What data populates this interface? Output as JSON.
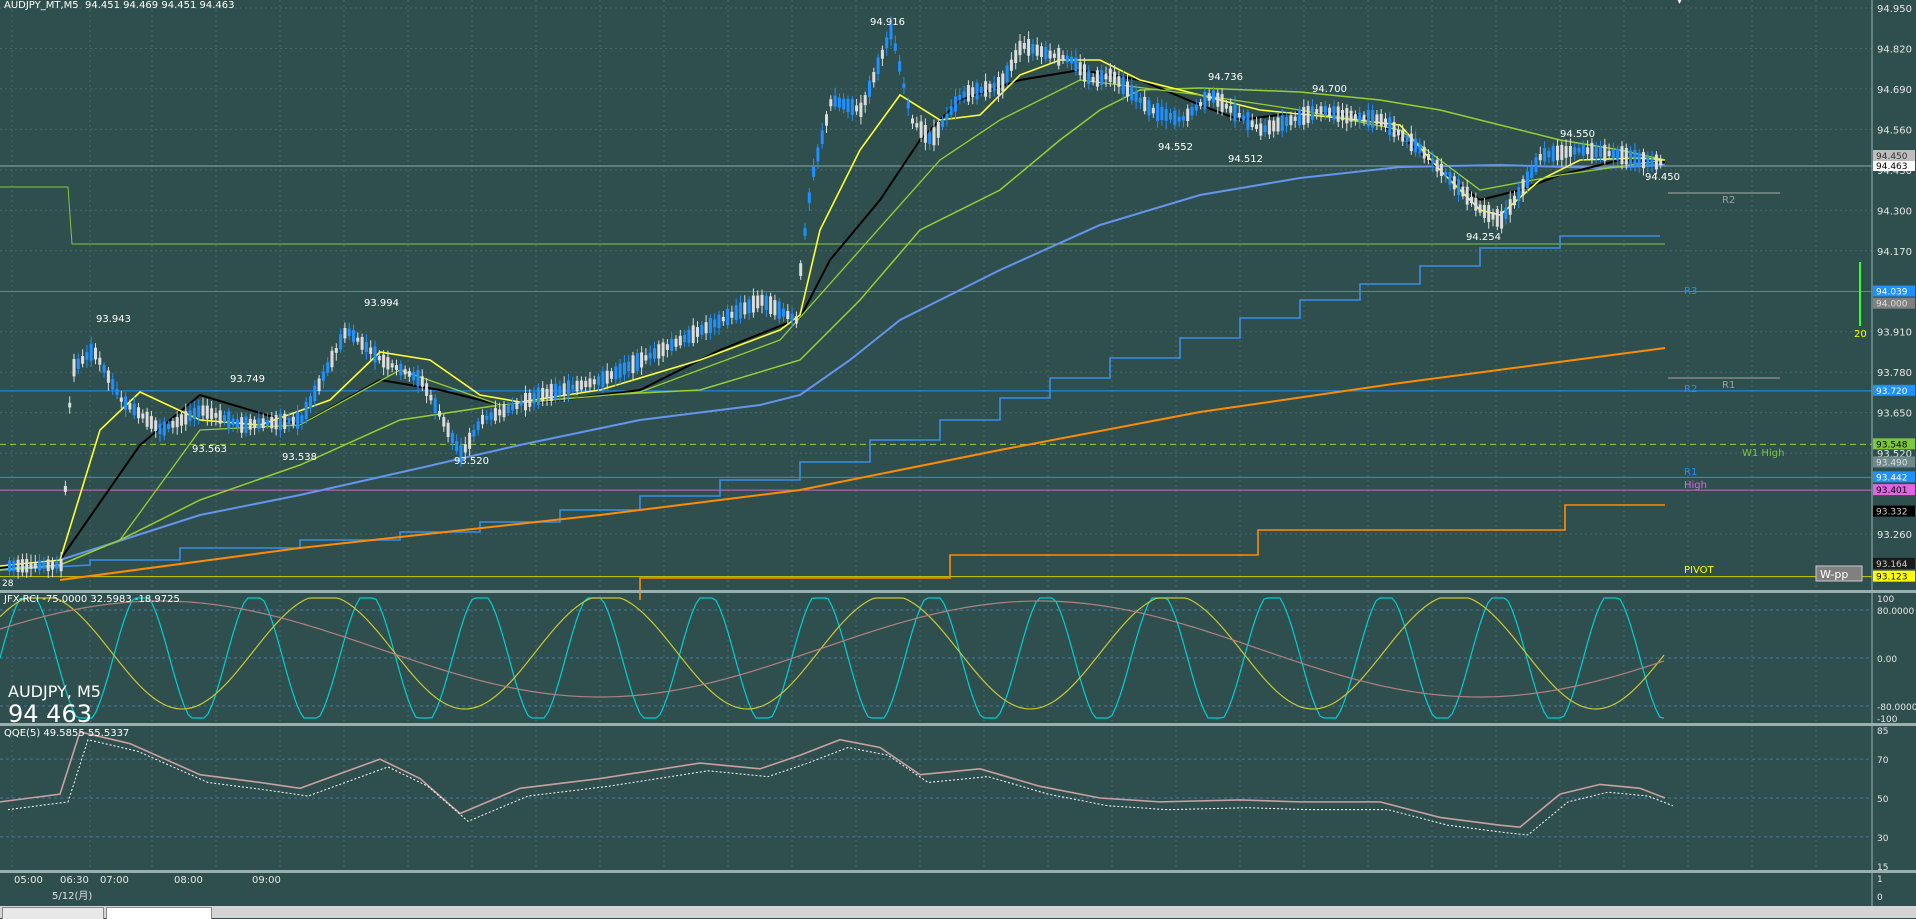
{
  "header": {
    "symbol_timeframe": "AUDJPY_MT,M5",
    "ohlc": "94.451 94.469 94.451 94.463"
  },
  "symbol_overlay": {
    "symbol": "AUDJPY, M5",
    "price": "94 463"
  },
  "main_chart": {
    "price_axis": [
      "94.950",
      "94.820",
      "94.690",
      "94.560",
      "94.430",
      "94.300",
      "94.170",
      "93.910",
      "93.780",
      "93.650",
      "93.520",
      "93.260"
    ],
    "axis_badges": {
      "current": "94.463",
      "current_shadow": "94.450",
      "r3": "94.039",
      "r3_gray": "94.000",
      "r2": "93.720",
      "w1_high": "93.548",
      "level_gray": "93.490",
      "r1": "93.442",
      "high": "93.401",
      "black_badge": "93.332",
      "dark_badge": "93.164",
      "pivot_yellow": "93.123"
    },
    "swing_labels": [
      "93.943",
      "93.994",
      "93.749",
      "93.563",
      "93.538",
      "93.520",
      "94.916",
      "94.736",
      "94.700",
      "94.552",
      "94.512",
      "94.550",
      "94.254",
      "94.450"
    ],
    "level_labels": {
      "r2_gray": "R2",
      "r3_blue": "R3",
      "r2_blue": "R2",
      "r1_gray": "R1",
      "w1_high": "W1 High",
      "r1_blue": "R1",
      "high": "High",
      "pivot": "PIVOT",
      "wpp": "W-pp"
    },
    "volume_marker": "20",
    "left_edge_label": "28"
  },
  "rci": {
    "title": "JFX-RCI -75.0000 32.5983 -18.9725",
    "axis": [
      "100",
      "80.0000",
      "0.00",
      "-80.0000",
      "-100"
    ]
  },
  "qqe": {
    "title": "QQE(5) 49.5855 55.5337",
    "axis": [
      "85",
      "70",
      "50",
      "30",
      "15"
    ]
  },
  "extra_pane": {
    "axis": [
      "1",
      "0"
    ]
  },
  "time_axis": {
    "times": [
      "05:00",
      "06:30",
      "07:00",
      "08:00",
      "09:00"
    ],
    "date": "5/12(月)"
  },
  "colors": {
    "background": "#2f4f4f",
    "candle_up": "#1e90ff",
    "candle_down": "#dcdcdc",
    "ma_fast": "#ffff33",
    "ma_black": "#000000",
    "ma_green": "#9acd32",
    "ma_blue": "#6495ed",
    "ma_orange": "#ff8c00",
    "r_lines": "#1e90ff",
    "rci_short": "#00ced1",
    "rci_mid": "#c8c832",
    "rci_long": "#b08080",
    "qqe_main": "#c8a0a0"
  }
}
